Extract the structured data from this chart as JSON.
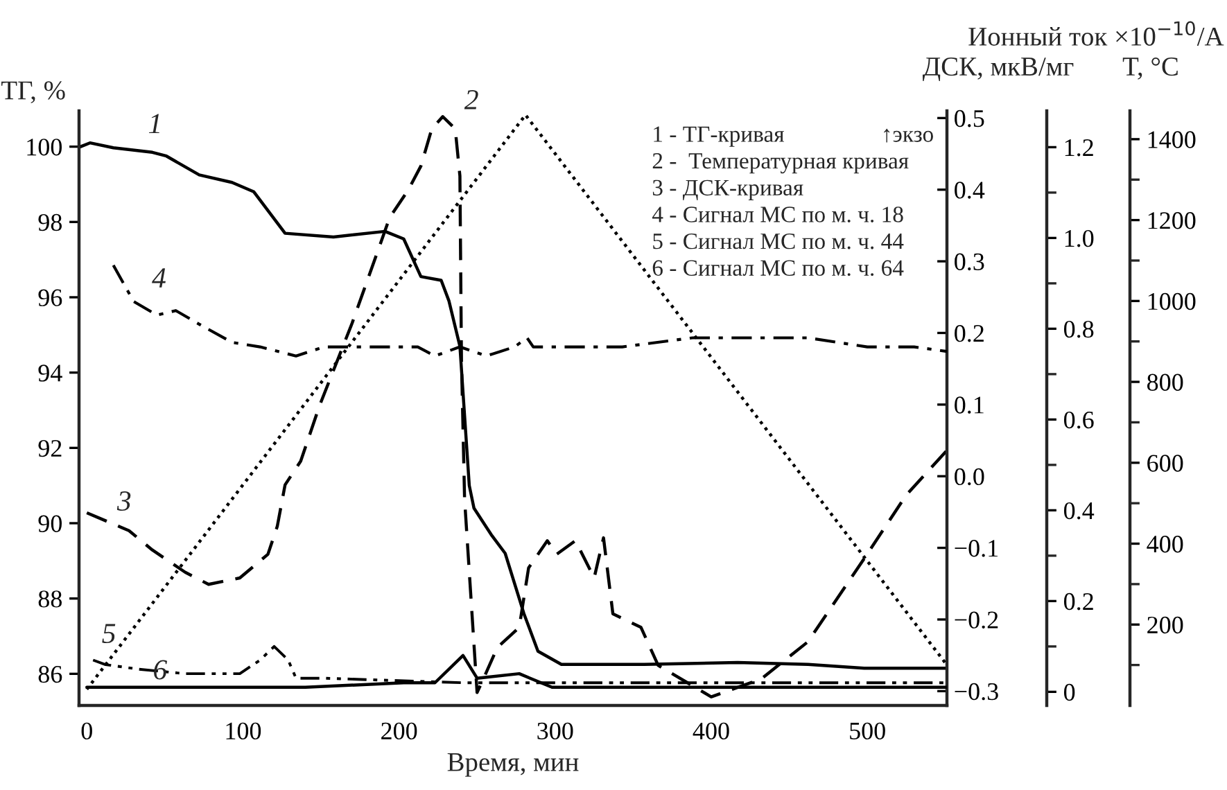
{
  "chart_data": [
    {
      "type": "line",
      "xlabel": "Время, мин",
      "ylabel": "ТГ, %",
      "y2label": "ДСК, мкВ/мг",
      "y3label": "Ионный ток ×10$^{−10}$/А",
      "xlim": [
        -5,
        551
      ],
      "xticks": [
        0,
        100,
        200,
        300,
        400,
        500
      ],
      "ylim": [
        85.16,
        100.95
      ],
      "yticks": [
        86,
        88,
        90,
        92,
        94,
        96,
        98,
        100
      ],
      "y2lim": [
        -0.32,
        0.51
      ],
      "y2ticks": [
        {
          "value": 0.5,
          "label": "0.5"
        },
        {
          "value": 0.4,
          "label": "0.4"
        },
        {
          "value": 0.3,
          "label": "0.3"
        },
        {
          "value": 0.2,
          "label": "0.2"
        },
        {
          "value": 0.1,
          "label": "0.1"
        },
        {
          "value": 0,
          "label": "0.0"
        },
        {
          "value": -0.1,
          "label": "−0.1"
        },
        {
          "value": -0.2,
          "label": "−0.2"
        },
        {
          "value": -0.3,
          "label": "−0.3"
        }
      ],
      "y3lim": [
        -0.03,
        1.28
      ],
      "y3ticks": [
        0,
        0.2,
        0.4,
        0.6,
        0.8,
        {
          "value": 1,
          "label": "1.0"
        },
        1.2
      ],
      "legend": false,
      "series": [
        {
          "name": "1",
          "color": "#000000",
          "line_style": "solid",
          "x": [
            -4,
            2,
            17,
            42,
            51,
            72,
            93,
            107,
            127,
            158,
            191,
            203,
            214,
            227,
            232,
            239,
            245,
            248,
            259,
            268,
            280,
            289,
            304,
            357,
            417,
            462,
            498,
            551
          ],
          "values": [
            100.0,
            100.1,
            99.97,
            99.85,
            99.75,
            99.25,
            99.05,
            98.8,
            97.7,
            97.6,
            97.75,
            97.55,
            96.55,
            96.45,
            95.9,
            94.7,
            91.0,
            90.4,
            89.7,
            89.2,
            87.6,
            86.6,
            86.25,
            86.25,
            86.3,
            86.25,
            86.15,
            86.15
          ]
        },
        {
          "name": "3",
          "axis": "y2",
          "color": "#000000",
          "line_style": "dashed",
          "x": [
            0,
            27,
            42,
            63,
            78,
            98,
            116,
            122,
            127,
            137,
            149,
            170,
            194,
            206,
            214,
            221,
            228,
            236,
            239,
            240,
            242,
            250,
            254,
            263,
            277,
            283,
            295,
            301,
            313,
            325,
            331,
            337,
            355,
            366,
            400,
            432,
            462,
            498,
            525,
            551
          ],
          "values": [
            -0.051,
            -0.076,
            -0.103,
            -0.134,
            -0.151,
            -0.142,
            -0.109,
            -0.07,
            -0.012,
            0.021,
            0.098,
            0.214,
            0.361,
            0.4,
            0.433,
            0.485,
            0.502,
            0.485,
            0.419,
            0.162,
            -0.032,
            -0.302,
            -0.283,
            -0.239,
            -0.211,
            -0.128,
            -0.09,
            -0.109,
            -0.09,
            -0.142,
            -0.086,
            -0.192,
            -0.211,
            -0.264,
            -0.308,
            -0.283,
            -0.231,
            -0.115,
            -0.026,
            0.036
          ]
        },
        {
          "name": "4",
          "axis": "y3",
          "color": "#000000",
          "line_style": "dashdot",
          "x": [
            17,
            30,
            45,
            57,
            72,
            93,
            111,
            134,
            152,
            182,
            212,
            223,
            239,
            256,
            274,
            282,
            286,
            343,
            388,
            438,
            462,
            500,
            530,
            551
          ],
          "values": [
            0.94,
            0.86,
            0.83,
            0.84,
            0.81,
            0.77,
            0.76,
            0.74,
            0.76,
            0.76,
            0.76,
            0.74,
            0.76,
            0.74,
            0.76,
            0.78,
            0.76,
            0.76,
            0.78,
            0.78,
            0.78,
            0.76,
            0.76,
            0.75
          ]
        },
        {
          "name": "5",
          "axis": "y3",
          "color": "#000000",
          "line_style": "dashdotdot",
          "x": [
            4,
            12,
            33,
            63,
            98,
            111,
            120,
            129,
            134,
            152,
            241,
            551
          ],
          "values": [
            0.07,
            0.06,
            0.05,
            0.04,
            0.04,
            0.07,
            0.1,
            0.07,
            0.03,
            0.03,
            0.02,
            0.02
          ]
        },
        {
          "name": "6",
          "axis": "y3",
          "color": "#000000",
          "line_style": "solid",
          "x": [
            0,
            140,
            203,
            223,
            241,
            250,
            277,
            298,
            357,
            551
          ],
          "values": [
            0.01,
            0.01,
            0.02,
            0.02,
            0.08,
            0.03,
            0.04,
            0.01,
            0.01,
            0.01
          ]
        }
      ],
      "annotations": [
        "↑экзо",
        "1 - ТГ-кривая",
        "2 -  Температурная кривая",
        "3 - ДСК-кривая",
        "4 - Сигнал МС по м. ч. 18",
        "5 - Сигнал МС по м. ч. 44",
        "6 - Сигнал МС по м. ч. 64"
      ]
    },
    {
      "type": "line",
      "ylabel": "T, °C",
      "tick_labels": "y",
      "xlim": [
        -5,
        551
      ],
      "ylim": [
        0,
        1470
      ],
      "yticks": [
        200,
        400,
        600,
        800,
        1000,
        1200,
        1400
      ],
      "series": [
        {
          "name": "2",
          "color": "#000000",
          "line_style": "dotted",
          "x": [
            0,
            281,
            551
          ],
          "values": [
            40,
            1460,
            100
          ]
        }
      ]
    }
  ]
}
